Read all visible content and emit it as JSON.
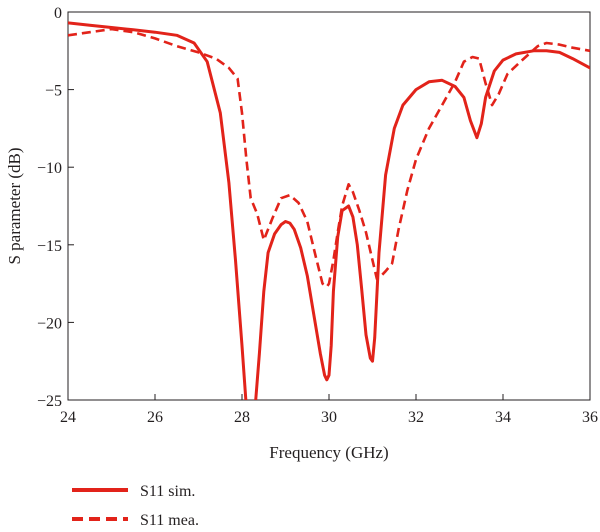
{
  "chart_data": {
    "type": "line",
    "xlabel": "Frequency (GHz)",
    "ylabel": "S parameter (dB)",
    "xlim": [
      24,
      36
    ],
    "ylim": [
      -25,
      0
    ],
    "xticks": [
      24,
      26,
      28,
      30,
      32,
      34,
      36
    ],
    "yticks": [
      0,
      -5,
      -10,
      -15,
      -20,
      -25
    ],
    "xtick_labels": [
      "24",
      "26",
      "28",
      "30",
      "32",
      "34",
      "36"
    ],
    "ytick_labels": [
      "0",
      "−5",
      "−10",
      "−15",
      "−20",
      "−25"
    ],
    "grid": false,
    "legend_position": "bottom, below plot",
    "series": [
      {
        "name": "S11 sim.",
        "color": "#e2231a",
        "style": "solid",
        "x": [
          24,
          24.5,
          25,
          25.5,
          26,
          26.5,
          26.9,
          27.2,
          27.5,
          27.7,
          27.85,
          28.0,
          28.1,
          28.2,
          28.3,
          28.4,
          28.5,
          28.6,
          28.75,
          28.9,
          29.0,
          29.1,
          29.2,
          29.35,
          29.5,
          29.65,
          29.8,
          29.9,
          29.95,
          30.0,
          30.05,
          30.1,
          30.2,
          30.3,
          30.45,
          30.55,
          30.65,
          30.75,
          30.85,
          30.95,
          31.0,
          31.05,
          31.15,
          31.3,
          31.5,
          31.7,
          32.0,
          32.3,
          32.6,
          32.9,
          33.1,
          33.25,
          33.4,
          33.5,
          33.6,
          33.8,
          34.0,
          34.3,
          34.7,
          35.0,
          35.3,
          35.6,
          36.0
        ],
        "y": [
          -0.7,
          -0.85,
          -1.0,
          -1.15,
          -1.3,
          -1.5,
          -2.0,
          -3.2,
          -6.5,
          -11.0,
          -16.0,
          -21.5,
          -25.5,
          -26.0,
          -25.5,
          -22.0,
          -18.0,
          -15.5,
          -14.3,
          -13.7,
          -13.5,
          -13.6,
          -14.0,
          -15.2,
          -17.0,
          -19.5,
          -22.0,
          -23.4,
          -23.7,
          -23.4,
          -21.5,
          -18.0,
          -14.5,
          -12.8,
          -12.5,
          -13.2,
          -15.0,
          -17.8,
          -20.8,
          -22.3,
          -22.5,
          -21.0,
          -15.5,
          -10.5,
          -7.5,
          -6.0,
          -5.0,
          -4.5,
          -4.4,
          -4.8,
          -5.5,
          -7.0,
          -8.1,
          -7.2,
          -5.5,
          -3.8,
          -3.1,
          -2.7,
          -2.5,
          -2.5,
          -2.6,
          -3.0,
          -3.6
        ]
      },
      {
        "name": "S11 mea.",
        "color": "#e2231a",
        "style": "dashed",
        "x": [
          24,
          24.5,
          25,
          25.5,
          26,
          26.5,
          27.0,
          27.4,
          27.7,
          27.9,
          28.0,
          28.1,
          28.2,
          28.35,
          28.5,
          28.7,
          28.9,
          29.1,
          29.3,
          29.5,
          29.7,
          29.85,
          29.95,
          30.0,
          30.1,
          30.2,
          30.3,
          30.45,
          30.55,
          30.7,
          30.85,
          31.0,
          31.1,
          31.2,
          31.3,
          31.45,
          31.6,
          31.8,
          32.0,
          32.3,
          32.6,
          32.9,
          33.1,
          33.3,
          33.45,
          33.6,
          33.75,
          33.9,
          34.1,
          34.4,
          34.8,
          35.0,
          35.3,
          35.6,
          36.0
        ],
        "y": [
          -1.5,
          -1.3,
          -1.1,
          -1.3,
          -1.7,
          -2.2,
          -2.6,
          -3.0,
          -3.6,
          -4.3,
          -6.5,
          -9.5,
          -12.0,
          -13.0,
          -14.7,
          -13.3,
          -12.0,
          -11.8,
          -12.3,
          -13.5,
          -15.8,
          -17.5,
          -17.7,
          -17.5,
          -16.0,
          -14.2,
          -12.5,
          -11.1,
          -11.6,
          -12.8,
          -14.2,
          -16.0,
          -17.2,
          -17.0,
          -16.7,
          -16.2,
          -14.0,
          -11.5,
          -9.5,
          -7.5,
          -6.0,
          -4.5,
          -3.2,
          -2.9,
          -3.0,
          -4.6,
          -6.0,
          -5.3,
          -4.0,
          -3.2,
          -2.2,
          -2.0,
          -2.1,
          -2.3,
          -2.5
        ]
      }
    ]
  }
}
